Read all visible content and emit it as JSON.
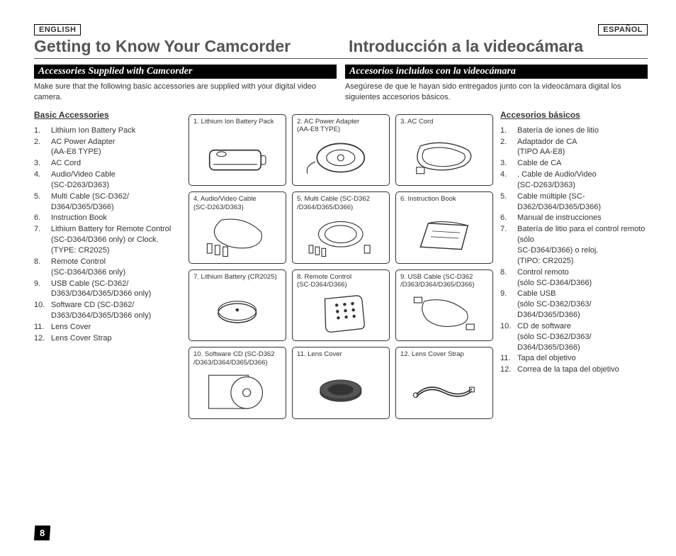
{
  "langs": {
    "left": "ENGLISH",
    "right": "ESPAÑOL"
  },
  "titles": {
    "left": "Getting to Know Your Camcorder",
    "right": "Introducción a la videocámara"
  },
  "bars": {
    "left": "Accessories Supplied with Camcorder",
    "right": "Accesorios incluidos con la videocámara"
  },
  "intros": {
    "left": "Make sure that the following basic accessories are supplied with your digital video camera.",
    "right": "Asegúrese de que le hayan sido entregados junto con la videocámara digital los siguientes accesorios básicos."
  },
  "subheads": {
    "left": "Basic Accessories",
    "right": "Accesorios básicos"
  },
  "left_list": [
    "Lithium Ion Battery Pack",
    "AC Power Adapter\n(AA-E8 TYPE)",
    "AC Cord",
    "Audio/Video Cable\n(SC-D263/D363)",
    "Multi Cable (SC-D362/\nD364/D365/D366)",
    "Instruction Book",
    "Lithium Battery for Remote Control (SC-D364/D366 only) or Clock.\n(TYPE: CR2025)",
    "Remote Control\n(SC-D364/D366 only)",
    "USB Cable (SC-D362/\nD363/D364/D365/D366 only)",
    "Software CD (SC-D362/\nD363/D364/D365/D366 only)",
    "Lens Cover",
    "Lens Cover Strap"
  ],
  "right_list": [
    "Batería de iones de litio",
    "Adaptador de CA\n(TIPO AA-E8)",
    "Cable de CA",
    ". Cable de Audio/Video\n(SC-D263/D363)",
    "Cable múltiple (SC-\nD362/D364/D365/D366)",
    "Manual de instrucciones",
    "Batería de litio para el control remoto (sólo\nSC-D364/D366) o reloj.\n(TIPO: CR2025)",
    "Control remoto\n(sólo SC-D364/D366)",
    "Cable USB\n(sólo SC-D362/D363/\nD364/D365/D366)",
    "CD de software\n(sólo SC-D362/D363/\nD364/D365/D366)",
    "Tapa del objetivo",
    "Correa de la tapa del objetivo"
  ],
  "cells": [
    "1. Lithium Ion Battery Pack",
    "2. AC Power Adapter\n    (AA-E8 TYPE)",
    "3. AC Cord",
    "4. Audio/Video Cable\n    (SC-D263/D363)",
    "5. Multi Cable (SC-D362\n    /D364/D365/D366)",
    "6. Instruction Book",
    "7. Lithium Battery (CR2025)",
    "8. Remote Control\n    (SC-D364/D366)",
    "9. USB Cable (SC-D362\n    /D363/D364/D365/D366)",
    "10. Software CD (SC-D362\n     /D363/D364/D365/D366)",
    "11. Lens Cover",
    "12. Lens Cover Strap"
  ],
  "page_number": "8",
  "colors": {
    "bar_bg": "#000000",
    "bar_fg": "#ffffff",
    "title_color": "#555555",
    "border": "#333333"
  }
}
